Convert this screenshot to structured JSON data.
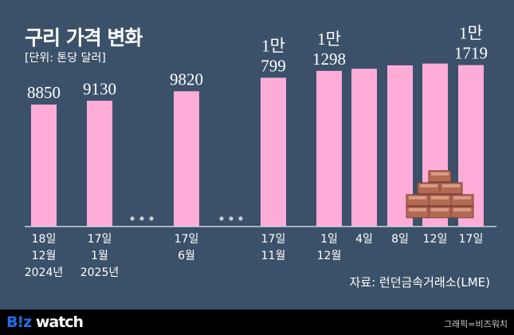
{
  "title": "구리 가격 변화",
  "unit": "[단위: 톤당 달러]",
  "source": "자료: 런던금속거래소(LME)",
  "logo": {
    "part1": "B!z",
    "part2": " watch"
  },
  "credit": "그래픽=비즈워치",
  "colors": {
    "background": "#3b5169",
    "bar": "#ffadd8",
    "footer": "#000000"
  },
  "chart_data": {
    "type": "bar",
    "title": "구리 가격 변화",
    "ylabel": "[단위: 톤당 달러]",
    "grid": false,
    "categories": [
      [
        "18일",
        "12월",
        "2024년"
      ],
      [
        "17일",
        "1월",
        "2025년"
      ],
      [
        "17일",
        "6월"
      ],
      [
        "17일",
        "11월"
      ],
      [
        "1일",
        "12월"
      ],
      [
        "4일"
      ],
      [
        "8일"
      ],
      [
        "12일"
      ],
      [
        "17일"
      ]
    ],
    "values": [
      8850,
      9130,
      9820,
      10799,
      11298,
      11450,
      11700,
      11830,
      11719
    ],
    "data_labels": [
      [
        "8850"
      ],
      [
        "9130"
      ],
      [
        "9820"
      ],
      [
        "1만",
        "799"
      ],
      [
        "1만",
        "1298"
      ],
      null,
      null,
      null,
      [
        "1만",
        "1719"
      ]
    ],
    "gaps_after": [
      1,
      2
    ],
    "gap_marker": "• • •"
  }
}
